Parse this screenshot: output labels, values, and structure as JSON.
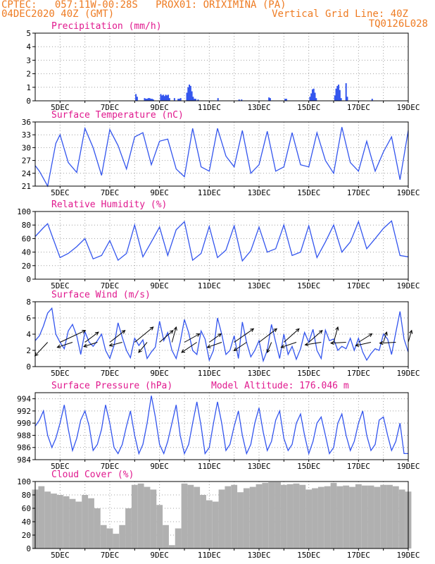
{
  "header": {
    "line1": "CPTEC:   057:11W-00:28S   PROX01: ORIXIMINA (PA)",
    "line2_left": "04DEC2020 40Z (GMT)",
    "line2_right": "Vertical Grid Line: 40Z",
    "line3_right": "TQ0126L028"
  },
  "colors": {
    "header": "#ee7b22",
    "title": "#e0198e",
    "line": "#3355ee",
    "bar": "#3355ee",
    "cloud": "#b0b0b0",
    "axis": "#000000"
  },
  "x_ticks": [
    "5DEC",
    "7DEC",
    "9DEC",
    "11DEC",
    "13DEC",
    "15DEC",
    "17DEC",
    "19DEC"
  ],
  "chart_data": [
    {
      "type": "bar",
      "title": "Precipitation (mm/h)",
      "ylim": [
        0,
        5
      ],
      "yticks": [
        0,
        1,
        2,
        3,
        4,
        5
      ],
      "grid": true,
      "xlim": [
        4.0,
        19.0
      ],
      "x": [
        8.05,
        8.1,
        8.4,
        8.45,
        8.5,
        8.55,
        8.6,
        8.65,
        8.7,
        8.75,
        9.05,
        9.1,
        9.15,
        9.2,
        9.25,
        9.3,
        9.35,
        9.4,
        9.6,
        9.75,
        9.8,
        9.85,
        10.1,
        10.15,
        10.2,
        10.25,
        10.3,
        10.35,
        10.4,
        10.45,
        10.55,
        11.35,
        12.2,
        12.3,
        13.4,
        13.45,
        14.05,
        14.1,
        15.05,
        15.1,
        15.15,
        15.2,
        15.25,
        15.3,
        16.05,
        16.1,
        16.15,
        16.2,
        16.25,
        16.3,
        16.5,
        16.55,
        17.55
      ],
      "values": [
        0.5,
        0.3,
        0.2,
        0.15,
        0.15,
        0.2,
        0.2,
        0.15,
        0.15,
        0.1,
        0.5,
        0.4,
        0.45,
        0.35,
        0.45,
        0.4,
        0.45,
        0.2,
        0.2,
        0.15,
        0.15,
        0.2,
        0.6,
        1.0,
        1.2,
        1.1,
        0.7,
        0.3,
        0.15,
        0.15,
        0.1,
        0.2,
        0.1,
        0.1,
        0.25,
        0.2,
        0.15,
        0.15,
        0.3,
        0.55,
        0.85,
        0.9,
        0.6,
        0.2,
        0.4,
        0.9,
        1.1,
        1.2,
        0.8,
        0.2,
        1.3,
        0.3,
        0.15
      ]
    },
    {
      "type": "line",
      "title": "Surface Temperature (nC)",
      "ylim": [
        21,
        36
      ],
      "yticks": [
        21,
        24,
        27,
        30,
        33,
        36
      ],
      "grid": true,
      "xlim": [
        4.0,
        19.0
      ],
      "x": [
        4.0,
        4.17,
        4.33,
        4.5,
        4.83,
        5.0,
        5.33,
        5.67,
        6.0,
        6.33,
        6.67,
        7.0,
        7.33,
        7.67,
        8.0,
        8.33,
        8.67,
        9.0,
        9.33,
        9.67,
        10.0,
        10.33,
        10.67,
        11.0,
        11.33,
        11.67,
        12.0,
        12.33,
        12.67,
        13.0,
        13.33,
        13.67,
        14.0,
        14.33,
        14.67,
        15.0,
        15.33,
        15.67,
        16.0,
        16.33,
        16.67,
        17.0,
        17.33,
        17.67,
        18.0,
        18.33,
        18.67,
        19.0
      ],
      "values": [
        25.8,
        24.5,
        22.8,
        21.0,
        31.0,
        33.0,
        26.5,
        24.2,
        34.5,
        30.0,
        23.5,
        34.2,
        30.5,
        25.0,
        32.5,
        33.5,
        26.0,
        31.5,
        32.0,
        25.0,
        23.2,
        34.5,
        25.5,
        24.5,
        34.5,
        28.0,
        25.5,
        34.0,
        24.0,
        26.0,
        33.8,
        24.5,
        25.5,
        33.5,
        26.0,
        25.5,
        33.5,
        27.0,
        24.0,
        34.8,
        26.5,
        24.5,
        31.5,
        24.5,
        29.0,
        32.5,
        22.5,
        34.0
      ]
    },
    {
      "type": "line",
      "title": "Relative Humidity (%)",
      "ylim": [
        0,
        100
      ],
      "yticks": [
        0,
        20,
        40,
        60,
        80,
        100
      ],
      "grid": true,
      "xlim": [
        4.0,
        19.0
      ],
      "x": [
        4.0,
        4.33,
        4.5,
        5.0,
        5.33,
        5.67,
        6.0,
        6.33,
        6.67,
        7.0,
        7.33,
        7.67,
        8.0,
        8.33,
        8.67,
        9.0,
        9.33,
        9.67,
        10.0,
        10.33,
        10.67,
        11.0,
        11.33,
        11.67,
        12.0,
        12.33,
        12.67,
        13.0,
        13.33,
        13.67,
        14.0,
        14.33,
        14.67,
        15.0,
        15.33,
        15.67,
        16.0,
        16.33,
        16.67,
        17.0,
        17.33,
        17.67,
        18.0,
        18.33,
        18.67,
        19.0
      ],
      "values": [
        63,
        76,
        82,
        32,
        38,
        48,
        60,
        30,
        35,
        57,
        28,
        38,
        80,
        33,
        55,
        77,
        35,
        73,
        85,
        28,
        38,
        78,
        32,
        43,
        79,
        27,
        42,
        77,
        40,
        45,
        80,
        35,
        40,
        79,
        32,
        55,
        80,
        40,
        55,
        85,
        45,
        60,
        75,
        86,
        35,
        33
      ]
    },
    {
      "type": "line",
      "title": "Surface Wind (m/s)",
      "ylim": [
        0,
        8
      ],
      "yticks": [
        0,
        2,
        4,
        6,
        8
      ],
      "grid": true,
      "xlim": [
        4.0,
        19.0
      ],
      "x": [
        4.0,
        4.17,
        4.33,
        4.5,
        4.67,
        4.83,
        5.0,
        5.17,
        5.33,
        5.5,
        5.67,
        5.83,
        6.0,
        6.17,
        6.33,
        6.5,
        6.67,
        6.83,
        7.0,
        7.17,
        7.33,
        7.5,
        7.67,
        7.83,
        8.0,
        8.17,
        8.33,
        8.5,
        8.67,
        8.83,
        9.0,
        9.17,
        9.33,
        9.5,
        9.67,
        9.83,
        10.0,
        10.17,
        10.33,
        10.5,
        10.67,
        10.83,
        11.0,
        11.17,
        11.33,
        11.5,
        11.67,
        11.83,
        12.0,
        12.17,
        12.33,
        12.5,
        12.67,
        12.83,
        13.0,
        13.17,
        13.33,
        13.5,
        13.67,
        13.83,
        14.0,
        14.17,
        14.33,
        14.5,
        14.67,
        14.83,
        15.0,
        15.17,
        15.33,
        15.5,
        15.67,
        15.83,
        16.0,
        16.17,
        16.33,
        16.5,
        16.67,
        16.83,
        17.0,
        17.17,
        17.33,
        17.5,
        17.67,
        17.83,
        18.0,
        18.17,
        18.33,
        18.5,
        18.67,
        18.83,
        19.0
      ],
      "values": [
        3.2,
        3.8,
        5.0,
        6.6,
        7.2,
        4.0,
        3.0,
        2.2,
        4.4,
        5.2,
        3.8,
        1.5,
        4.3,
        3.0,
        2.5,
        3.2,
        4.0,
        2.0,
        1.0,
        2.6,
        5.4,
        3.6,
        2.0,
        1.1,
        3.5,
        2.6,
        3.3,
        1.0,
        1.8,
        2.4,
        5.6,
        3.2,
        4.2,
        2.0,
        1.0,
        3.0,
        5.8,
        4.2,
        2.0,
        1.5,
        4.4,
        3.4,
        0.8,
        2.0,
        6.0,
        4.0,
        1.5,
        2.0,
        3.8,
        1.0,
        5.5,
        3.0,
        1.2,
        2.0,
        3.2,
        0.7,
        2.0,
        5.2,
        3.0,
        1.0,
        4.0,
        1.5,
        2.5,
        0.9,
        2.2,
        4.2,
        3.0,
        4.6,
        2.0,
        1.0,
        4.5,
        3.2,
        3.4,
        2.0,
        2.5,
        2.2,
        3.5,
        2.0,
        3.5,
        1.8,
        0.8,
        1.6,
        2.2,
        2.0,
        4.0,
        3.4,
        1.5,
        4.2,
        6.8,
        3.4,
        1.8
      ],
      "arrows_x": [
        4.5,
        5.0,
        5.5,
        6.0,
        6.5,
        7.0,
        7.5,
        8.0,
        8.5,
        9.0,
        9.5,
        10.0,
        10.5,
        11.0,
        11.5,
        12.0,
        12.5,
        13.0,
        13.5,
        14.0,
        14.5,
        15.0,
        15.5,
        16.0,
        16.5,
        17.0,
        17.5,
        18.0,
        18.5,
        19.0
      ],
      "arrows_u": [
        -1.5,
        3.0,
        -1.8,
        1.6,
        -1.6,
        1.8,
        -1.5,
        2.2,
        -1.0,
        1.6,
        0.5,
        1.8,
        -1.8,
        1.4,
        -1.7,
        2.3,
        -1.5,
        2.1,
        -0.5,
        1.8,
        -1.8,
        1.6,
        -1.9,
        0.5,
        -1.8,
        1.6,
        -1.8,
        0.4,
        -1.9,
        0.4
      ],
      "arrows_v": [
        -1.6,
        1.4,
        -0.6,
        1.2,
        -0.5,
        1.4,
        -0.4,
        1.8,
        -1.2,
        1.4,
        1.8,
        1.0,
        -1.2,
        1.0,
        -0.6,
        1.6,
        -1.0,
        1.6,
        -1.2,
        1.6,
        -0.6,
        1.4,
        -0.3,
        1.8,
        -0.1,
        1.0,
        -0.4,
        1.2,
        -0.1,
        1.4
      ]
    },
    {
      "type": "line",
      "title": "Surface Pressure (hPa)",
      "subtitle": "Model Altitude: 176.046 m",
      "ylim": [
        984,
        995
      ],
      "yticks": [
        984,
        986,
        988,
        990,
        992,
        994
      ],
      "grid": true,
      "xlim": [
        4.0,
        19.0
      ],
      "x": [
        4.0,
        4.17,
        4.33,
        4.5,
        4.67,
        4.83,
        5.0,
        5.17,
        5.33,
        5.5,
        5.67,
        5.83,
        6.0,
        6.17,
        6.33,
        6.5,
        6.67,
        6.83,
        7.0,
        7.17,
        7.33,
        7.5,
        7.67,
        7.83,
        8.0,
        8.17,
        8.33,
        8.5,
        8.67,
        8.83,
        9.0,
        9.17,
        9.33,
        9.5,
        9.67,
        9.83,
        10.0,
        10.17,
        10.33,
        10.5,
        10.67,
        10.83,
        11.0,
        11.17,
        11.33,
        11.5,
        11.67,
        11.83,
        12.0,
        12.17,
        12.33,
        12.5,
        12.67,
        12.83,
        13.0,
        13.17,
        13.33,
        13.5,
        13.67,
        13.83,
        14.0,
        14.17,
        14.33,
        14.5,
        14.67,
        14.83,
        15.0,
        15.17,
        15.33,
        15.5,
        15.67,
        15.83,
        16.0,
        16.17,
        16.33,
        16.5,
        16.67,
        16.83,
        17.0,
        17.17,
        17.33,
        17.5,
        17.67,
        17.83,
        18.0,
        18.17,
        18.33,
        18.5,
        18.67,
        18.83,
        19.0
      ],
      "values": [
        989.5,
        990.5,
        992.0,
        988.0,
        986.0,
        987.5,
        990.0,
        993.0,
        989.0,
        985.5,
        987.5,
        990.5,
        992.0,
        989.5,
        985.5,
        986.5,
        989.0,
        993.0,
        990.0,
        986.0,
        985.0,
        986.5,
        989.5,
        992.0,
        988.0,
        985.0,
        986.5,
        990.0,
        994.5,
        991.0,
        986.5,
        985.0,
        987.0,
        990.0,
        993.0,
        988.0,
        985.0,
        986.5,
        990.0,
        993.5,
        989.5,
        985.0,
        986.0,
        990.0,
        993.5,
        990.0,
        985.5,
        986.5,
        989.5,
        992.0,
        988.0,
        985.0,
        986.5,
        990.0,
        992.5,
        988.5,
        985.5,
        987.0,
        990.5,
        992.0,
        987.5,
        985.5,
        986.5,
        990.0,
        991.5,
        988.0,
        985.0,
        987.0,
        990.0,
        991.0,
        988.0,
        985.0,
        986.0,
        990.0,
        991.5,
        988.0,
        985.5,
        987.0,
        990.0,
        992.0,
        988.0,
        985.5,
        986.5,
        990.5,
        991.0,
        988.0,
        985.5,
        987.0,
        990.0,
        985.0,
        985.0
      ]
    },
    {
      "type": "bar",
      "title": "Cloud Cover (%)",
      "ylim": [
        0,
        100
      ],
      "yticks": [
        0,
        20,
        40,
        60,
        80,
        100
      ],
      "grid": true,
      "xlim": [
        4.0,
        19.0
      ],
      "x": [
        4.0,
        4.25,
        4.5,
        4.75,
        5.0,
        5.25,
        5.5,
        5.75,
        6.0,
        6.25,
        6.5,
        6.75,
        7.0,
        7.25,
        7.5,
        7.75,
        8.0,
        8.25,
        8.5,
        8.75,
        9.0,
        9.25,
        9.5,
        9.75,
        10.0,
        10.25,
        10.5,
        10.75,
        11.0,
        11.25,
        11.5,
        11.75,
        12.0,
        12.25,
        12.5,
        12.75,
        13.0,
        13.25,
        13.5,
        13.75,
        14.0,
        14.25,
        14.5,
        14.75,
        15.0,
        15.25,
        15.5,
        15.75,
        16.0,
        16.25,
        16.5,
        16.75,
        17.0,
        17.25,
        17.5,
        17.75,
        18.0,
        18.25,
        18.5,
        18.75,
        19.0
      ],
      "values": [
        88,
        93,
        85,
        82,
        80,
        78,
        74,
        70,
        80,
        75,
        60,
        35,
        30,
        22,
        35,
        60,
        95,
        97,
        92,
        88,
        65,
        35,
        5,
        30,
        97,
        95,
        92,
        80,
        72,
        70,
        88,
        93,
        95,
        84,
        90,
        92,
        96,
        98,
        99,
        99,
        95,
        96,
        97,
        95,
        88,
        90,
        92,
        93,
        98,
        93,
        94,
        92,
        96,
        94,
        94,
        92,
        95,
        95,
        93,
        88,
        85
      ]
    }
  ]
}
